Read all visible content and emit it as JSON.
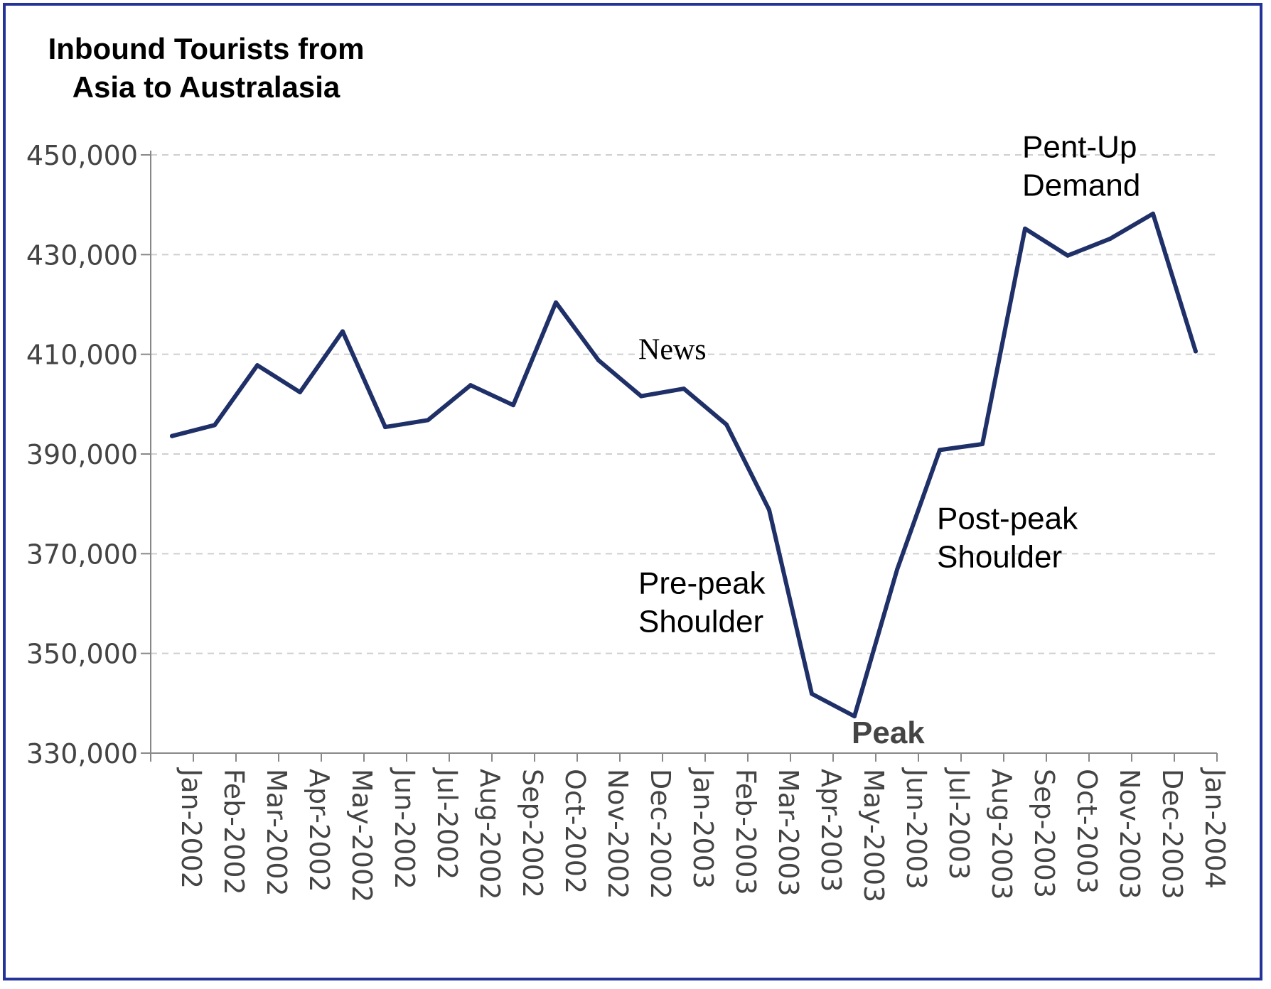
{
  "chart_data": {
    "type": "line",
    "title_lines": [
      "Inbound Tourists from",
      "Asia to Australasia"
    ],
    "categories": [
      "Jan-2002",
      "Feb-2002",
      "Mar-2002",
      "Apr-2002",
      "May-2002",
      "Jun-2002",
      "Jul-2002",
      "Aug-2002",
      "Sep-2002",
      "Oct-2002",
      "Nov-2002",
      "Dec-2002",
      "Jan-2003",
      "Feb-2003",
      "Mar-2003",
      "Apr-2003",
      "May-2003",
      "Jun-2003",
      "Jul-2003",
      "Aug-2003",
      "Sep-2003",
      "Oct-2003",
      "Nov-2003",
      "Dec-2003",
      "Jan-2004"
    ],
    "values": [
      393600,
      395800,
      407800,
      402400,
      414600,
      395400,
      396800,
      403800,
      399800,
      420400,
      408800,
      401600,
      403100,
      395900,
      378800,
      341900,
      337400,
      366800,
      390800,
      392000,
      435200,
      429800,
      433200,
      438200,
      410600
    ],
    "ylim": [
      330000,
      450000
    ],
    "yticks": [
      330000,
      350000,
      370000,
      390000,
      410000,
      430000,
      450000
    ],
    "ytick_labels": [
      "330,000",
      "350,000",
      "370,000",
      "390,000",
      "410,000",
      "430,000",
      "450,000"
    ],
    "grid": true,
    "line_color": "#1f3068",
    "annotations": [
      {
        "text": "News",
        "lines": [
          "News"
        ],
        "style": "serif",
        "x": "Dec-2002",
        "y": 409000
      },
      {
        "text": "Pre-peak Shoulder",
        "lines": [
          "Pre-peak",
          "Shoulder"
        ],
        "style": "sans",
        "x": "Dec-2002",
        "y": 362000
      },
      {
        "text": "Peak",
        "lines": [
          "Peak"
        ],
        "style": "bold",
        "x": "May-2003",
        "y": 332000
      },
      {
        "text": "Post-peak Shoulder",
        "lines": [
          "Post-peak",
          "Shoulder"
        ],
        "style": "sans",
        "x": "Jul-2003",
        "y": 375000
      },
      {
        "text": "Pent-Up Demand",
        "lines": [
          "Pent-Up",
          "Demand"
        ],
        "style": "sans",
        "x": "Sep-2003",
        "y": 449500
      }
    ]
  }
}
